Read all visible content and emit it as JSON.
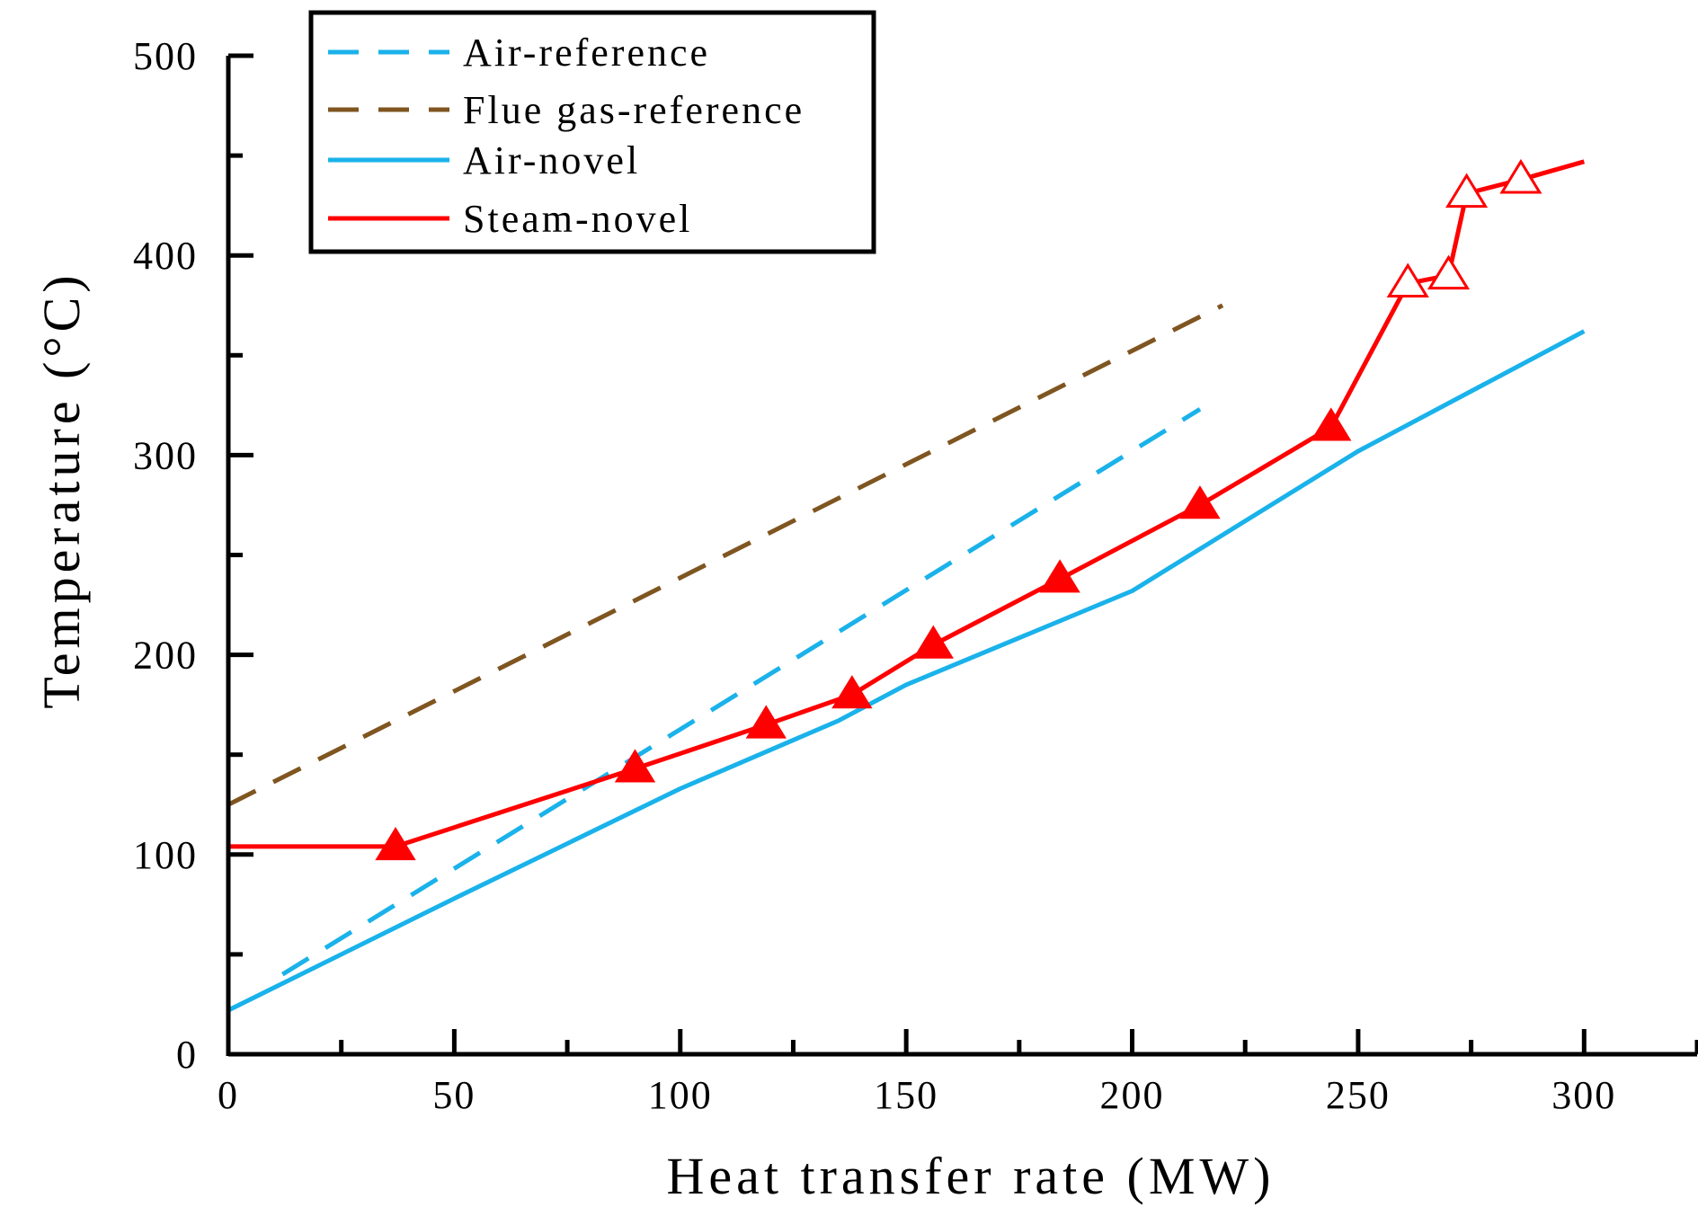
{
  "chart_data": {
    "type": "line",
    "xlabel": "Heat transfer rate (MW)",
    "ylabel": "Temperature (°C)",
    "xlim": [
      0,
      325
    ],
    "ylim": [
      0,
      500
    ],
    "x_ticks": [
      0,
      50,
      100,
      150,
      200,
      250,
      300
    ],
    "x_tick_labels": [
      "0",
      "50",
      "100",
      "150",
      "200",
      "250",
      "300"
    ],
    "y_ticks": [
      0,
      100,
      200,
      300,
      400,
      500
    ],
    "y_tick_labels": [
      "0",
      "100",
      "200",
      "300",
      "400",
      "500"
    ],
    "grid": false,
    "legend_position": "top-left",
    "series": [
      {
        "name": "Air-reference",
        "color": "#1ab2ea",
        "line_style": "dashed",
        "marker": "none",
        "x": [
          12,
          215
        ],
        "y": [
          40,
          323
        ]
      },
      {
        "name": "Flue gas-reference",
        "color": "#7f5520",
        "line_style": "dashed",
        "marker": "none",
        "x": [
          0,
          220
        ],
        "y": [
          125,
          375
        ]
      },
      {
        "name": "Air-novel",
        "color": "#1ab2ea",
        "line_style": "solid",
        "marker": "none",
        "x": [
          0,
          50,
          100,
          135,
          150,
          200,
          250,
          300
        ],
        "y": [
          22,
          78,
          133,
          167,
          185,
          232,
          302,
          362
        ]
      },
      {
        "name": "Steam-novel",
        "color": "#ff0000",
        "line_style": "solid",
        "marker": "triangle",
        "x": [
          0,
          37,
          90,
          119,
          138,
          156,
          184,
          215,
          244,
          261,
          270,
          274,
          286,
          300
        ],
        "y": [
          104,
          104,
          143,
          165,
          180,
          205,
          238,
          275,
          314,
          386,
          390,
          431,
          438,
          447
        ],
        "marker_x": [
          37,
          90,
          119,
          138,
          156,
          184,
          215,
          244,
          261,
          270,
          274,
          286
        ],
        "marker_y": [
          104,
          143,
          165,
          180,
          205,
          238,
          275,
          314,
          386,
          390,
          431,
          438
        ],
        "marker_fill": [
          "filled",
          "filled",
          "filled",
          "filled",
          "filled",
          "filled",
          "filled",
          "filled",
          "hollow",
          "hollow",
          "hollow",
          "hollow"
        ]
      }
    ]
  }
}
